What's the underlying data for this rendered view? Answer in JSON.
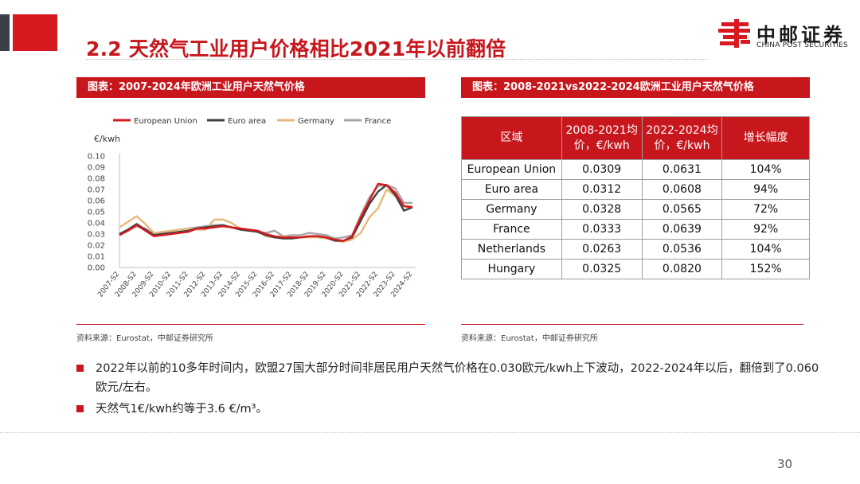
{
  "header": {
    "title": "2.2 天然气工业用户价格相比2021年以前翻倍",
    "logo_cn": "中邮证券",
    "logo_en": "CHINA POST SECURITIES"
  },
  "left_panel": {
    "heading": "图表：2007-2024年欧洲工业用户天然气价格",
    "source": "资料来源：Eurostat，中邮证券研究所"
  },
  "right_panel": {
    "heading": "图表：2008-2021vs2022-2024欧洲工业用户天然气价格",
    "source": "资料来源：Eurostat，中邮证券研究所",
    "table": {
      "headers": [
        "区域",
        "2008-2021均价，€/kwh",
        "2022-2024均价，€/kwh",
        "增长幅度"
      ],
      "rows": [
        [
          "European Union",
          "0.0309",
          "0.0631",
          "104%"
        ],
        [
          "Euro area",
          "0.0312",
          "0.0608",
          "94%"
        ],
        [
          "Germany",
          "0.0328",
          "0.0565",
          "72%"
        ],
        [
          "France",
          "0.0333",
          "0.0639",
          "92%"
        ],
        [
          "Netherlands",
          "0.0263",
          "0.0536",
          "104%"
        ],
        [
          "Hungary",
          "0.0325",
          "0.0820",
          "152%"
        ]
      ]
    }
  },
  "bullets": [
    "2022年以前的10多年时间内，欧盟27国大部分时间非居民用户天然气价格在0.030欧元/kwh上下波动，2022-2024年以后，翻倍到了0.060欧元/左右。",
    "天然气1€/kwh约等于3.6 €/m³。"
  ],
  "page_number": "30",
  "colors": {
    "brand_red": "#c8161d",
    "european_union": "#d71920",
    "euro_area": "#404040",
    "germany": "#e6b97a",
    "france": "#a6a6a6"
  },
  "chart_data": {
    "type": "line",
    "title": "",
    "xlabel": "",
    "ylabel": "€/kwh",
    "ylim": [
      0,
      0.1
    ],
    "yticks": [
      "0.10",
      "0.09",
      "0.08",
      "0.07",
      "0.06",
      "0.05",
      "0.04",
      "0.03",
      "0.02",
      "0.01",
      "0.00"
    ],
    "x": [
      "2007-S2",
      "2008-S1",
      "2008-S2",
      "2009-S1",
      "2009-S2",
      "2010-S1",
      "2010-S2",
      "2011-S1",
      "2011-S2",
      "2012-S1",
      "2012-S2",
      "2013-S1",
      "2013-S2",
      "2014-S1",
      "2014-S2",
      "2015-S1",
      "2015-S2",
      "2016-S1",
      "2016-S2",
      "2017-S1",
      "2017-S2",
      "2018-S1",
      "2018-S2",
      "2019-S1",
      "2019-S2",
      "2020-S1",
      "2020-S2",
      "2021-S1",
      "2021-S2",
      "2022-S1",
      "2022-S2",
      "2023-S1",
      "2023-S2",
      "2024-S1",
      "2024-S2"
    ],
    "tick_labels": [
      "2007-S2",
      "2008-S2",
      "2009-S2",
      "2010-S2",
      "2011-S2",
      "2012-S2",
      "2013-S2",
      "2014-S2",
      "2015-S2",
      "2016-S2",
      "2017-S2",
      "2018-S2",
      "2019-S2",
      "2020-S2",
      "2021-S2",
      "2022-S2",
      "2023-S2",
      "2024-S2"
    ],
    "legend_position": "top",
    "series": [
      {
        "name": "European Union",
        "color": "#d71920",
        "values": [
          0.029,
          0.033,
          0.038,
          0.033,
          0.028,
          0.029,
          0.03,
          0.031,
          0.032,
          0.035,
          0.035,
          0.036,
          0.037,
          0.036,
          0.035,
          0.034,
          0.033,
          0.03,
          0.028,
          0.027,
          0.027,
          0.027,
          0.028,
          0.028,
          0.027,
          0.025,
          0.024,
          0.028,
          0.045,
          0.06,
          0.075,
          0.074,
          0.067,
          0.055,
          0.054
        ]
      },
      {
        "name": "Euro area",
        "color": "#404040",
        "values": [
          0.03,
          0.034,
          0.039,
          0.034,
          0.029,
          0.03,
          0.031,
          0.032,
          0.033,
          0.035,
          0.036,
          0.037,
          0.038,
          0.036,
          0.034,
          0.033,
          0.032,
          0.029,
          0.027,
          0.026,
          0.026,
          0.027,
          0.028,
          0.028,
          0.027,
          0.024,
          0.024,
          0.027,
          0.042,
          0.057,
          0.068,
          0.074,
          0.065,
          0.051,
          0.054
        ]
      },
      {
        "name": "Germany",
        "color": "#e6b97a",
        "values": [
          0.036,
          0.041,
          0.046,
          0.039,
          0.031,
          0.032,
          0.033,
          0.034,
          0.035,
          0.034,
          0.034,
          0.043,
          0.043,
          0.04,
          0.035,
          0.034,
          0.033,
          0.028,
          0.027,
          0.028,
          0.027,
          0.027,
          0.027,
          0.027,
          0.026,
          0.024,
          0.023,
          0.025,
          0.031,
          0.045,
          0.053,
          0.07,
          0.064,
          0.055,
          0.055
        ]
      },
      {
        "name": "France",
        "color": "#a6a6a6",
        "values": [
          0.03,
          0.033,
          0.037,
          0.035,
          0.03,
          0.031,
          0.033,
          0.034,
          0.035,
          0.036,
          0.037,
          0.038,
          0.038,
          0.036,
          0.035,
          0.034,
          0.032,
          0.031,
          0.033,
          0.028,
          0.029,
          0.029,
          0.031,
          0.03,
          0.029,
          0.026,
          0.027,
          0.029,
          0.047,
          0.063,
          0.073,
          0.074,
          0.071,
          0.058,
          0.058
        ]
      }
    ]
  }
}
